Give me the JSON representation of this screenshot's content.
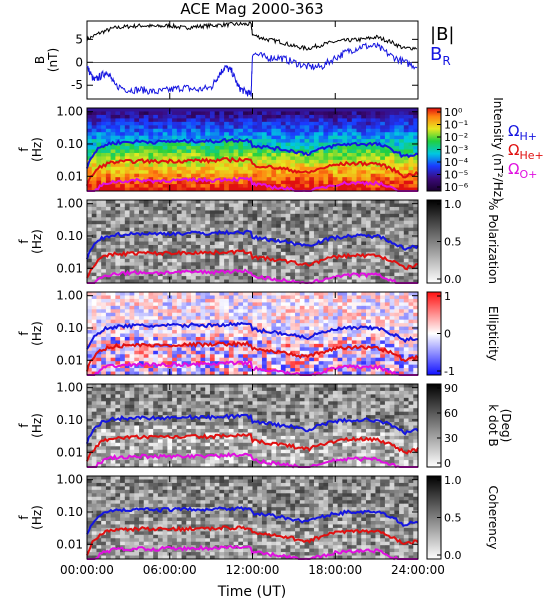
{
  "title": "ACE Mag 2000-363",
  "xlabel": "Time (UT)",
  "x_ticks": [
    "00:00:00",
    "06:00:00",
    "12:00:00",
    "18:00:00",
    "24:00:00"
  ],
  "colors": {
    "proton": "#1515e0",
    "helium": "#e01010",
    "oxygen": "#e010e0",
    "bmag": "#000000",
    "br": "#1515e0"
  },
  "chart_data": [
    {
      "type": "line",
      "panel": "B",
      "ylabel": "B\n(nT)",
      "ylabel_lines": [
        "B",
        "(nT)"
      ],
      "y_ticks": [
        "5",
        "0",
        "-5"
      ],
      "ylim": [
        -8,
        9
      ],
      "xlim": [
        0,
        24
      ],
      "series": [
        {
          "name": "|B|",
          "x": [
            0,
            1,
            2,
            3,
            4,
            5,
            6,
            7,
            8,
            9,
            10,
            11,
            11.9,
            12,
            13,
            14,
            15,
            16,
            17,
            18,
            19,
            20,
            21,
            22,
            23,
            24
          ],
          "y": [
            5,
            6.5,
            7.5,
            7.8,
            8,
            7.8,
            8,
            7.5,
            7.8,
            8,
            8.2,
            8.3,
            8.3,
            6,
            5,
            4.5,
            3.5,
            3,
            3.8,
            4.5,
            4.8,
            5,
            5.5,
            4.5,
            3,
            3.2
          ]
        },
        {
          "name": "B_R",
          "x": [
            0,
            0.5,
            1,
            1.5,
            2,
            3,
            4,
            5,
            6,
            7,
            8,
            9,
            9.5,
            10,
            10.5,
            11,
            11.5,
            11.9,
            12,
            13,
            14,
            15,
            16,
            17,
            18,
            19,
            20,
            21,
            22,
            23,
            24
          ],
          "y": [
            -1,
            -4,
            -3,
            -2,
            -5,
            -6,
            -6,
            -6.5,
            -6,
            -5.5,
            -6,
            -5.5,
            -3,
            -1,
            -2,
            -5.5,
            -6.5,
            -7,
            2,
            1,
            1,
            0,
            -1,
            -1,
            1,
            2.5,
            3.5,
            3.5,
            1.5,
            0,
            -1
          ]
        }
      ]
    },
    {
      "type": "heatmap",
      "panel": "Intensity",
      "ylabel": "f (Hz)",
      "y_ticks": [
        "1.00",
        "0.10",
        "0.01"
      ],
      "colorbar_label": "Intensity (nT²/Hz)",
      "colorbar_ticks": [
        "10⁰",
        "10⁻¹",
        "10⁻²",
        "10⁻³",
        "10⁻⁴",
        "10⁻⁵",
        "10⁻⁶"
      ],
      "legend": [
        "ΩH+",
        "ΩHe+",
        "ΩO+"
      ],
      "colorscale": "rainbow"
    },
    {
      "type": "heatmap",
      "panel": "Polarization",
      "ylabel": "f (Hz)",
      "y_ticks": [
        "1.00",
        "0.10",
        "0.01"
      ],
      "colorbar_label": "% Polarization",
      "colorbar_ticks": [
        "1.0",
        "0.5",
        "0.0"
      ],
      "colorscale": "gray"
    },
    {
      "type": "heatmap",
      "panel": "Ellipticity",
      "ylabel": "f (Hz)",
      "y_ticks": [
        "1.00",
        "0.10",
        "0.01"
      ],
      "colorbar_label": "Ellipticity",
      "colorbar_ticks": [
        "1",
        "0",
        "-1"
      ],
      "colorscale": "bwr"
    },
    {
      "type": "heatmap",
      "panel": "k dot B",
      "ylabel": "f (Hz)",
      "y_ticks": [
        "1.00",
        "0.10",
        "0.01"
      ],
      "colorbar_label": "k dot B (Deg)",
      "colorbar_label_lines": [
        "k dot B",
        "(Deg)"
      ],
      "colorbar_ticks": [
        "90",
        "60",
        "30",
        "0"
      ],
      "colorscale": "gray"
    },
    {
      "type": "heatmap",
      "panel": "Coherency",
      "ylabel": "f (Hz)",
      "y_ticks": [
        "1.00",
        "0.10",
        "0.01"
      ],
      "colorbar_label": "Coherency",
      "colorbar_ticks": [
        "1.0",
        "0.5",
        "0.0"
      ],
      "colorscale": "gray"
    }
  ],
  "gyro_lines": {
    "x": [
      0,
      0.5,
      1,
      1.5,
      2,
      3,
      4,
      5,
      6,
      7,
      8,
      9,
      10,
      11,
      11.9,
      12,
      13,
      14,
      15,
      16,
      17,
      18,
      19,
      20,
      21,
      22,
      23,
      24
    ],
    "proton_hz": [
      0.02,
      0.05,
      0.08,
      0.1,
      0.11,
      0.115,
      0.12,
      0.115,
      0.12,
      0.12,
      0.125,
      0.12,
      0.13,
      0.13,
      0.13,
      0.09,
      0.08,
      0.07,
      0.06,
      0.05,
      0.07,
      0.09,
      0.1,
      0.1,
      0.1,
      0.07,
      0.04,
      0.05
    ]
  }
}
